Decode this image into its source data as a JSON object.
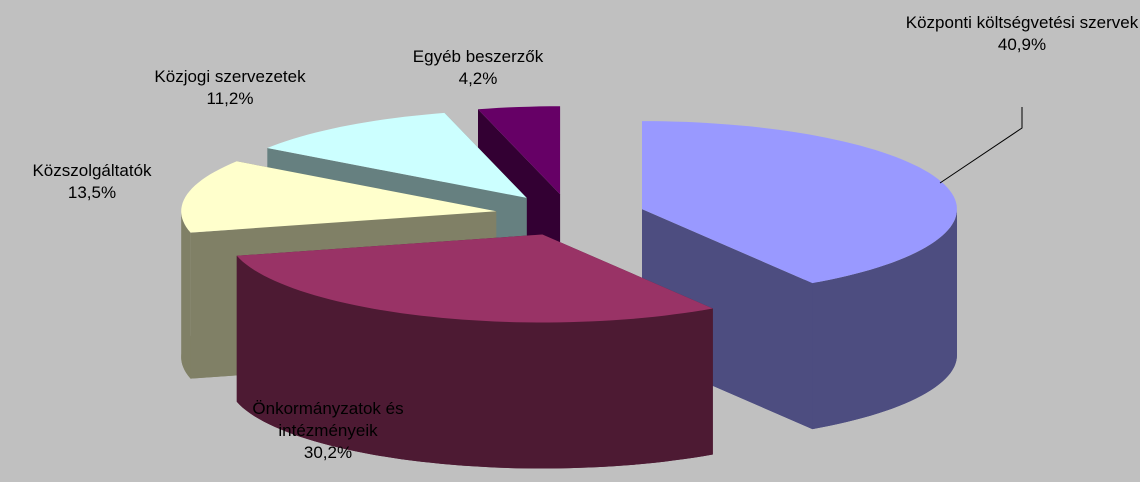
{
  "chart_data": {
    "type": "pie3d",
    "categories": [
      "Központi költségvetési szervek",
      "Önkormányzatok és intézményeik",
      "Közszolgáltatók",
      "Közjogi szervezetek",
      "Egyéb beszerzők"
    ],
    "values": [
      40.9,
      30.2,
      13.5,
      11.2,
      4.2
    ],
    "value_labels": [
      "40,9%",
      "30,2%",
      "13,5%",
      "11,2%",
      "4,2%"
    ],
    "colors": [
      "#9999ff",
      "#993366",
      "#ffffcc",
      "#ccffff",
      "#660066"
    ]
  }
}
